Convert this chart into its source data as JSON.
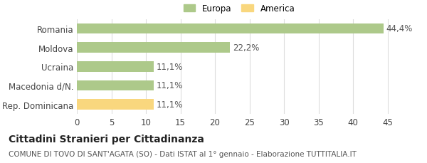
{
  "categories": [
    "Romania",
    "Moldova",
    "Ucraina",
    "Macedonia d/N.",
    "Rep. Dominicana"
  ],
  "values": [
    44.4,
    22.2,
    11.1,
    11.1,
    11.1
  ],
  "labels": [
    "44,4%",
    "22,2%",
    "11,1%",
    "11,1%",
    "11,1%"
  ],
  "bar_colors": [
    "#adc98a",
    "#adc98a",
    "#adc98a",
    "#adc98a",
    "#f9d77e"
  ],
  "legend_items": [
    {
      "label": "Europa",
      "color": "#adc98a"
    },
    {
      "label": "America",
      "color": "#f9d77e"
    }
  ],
  "xlim": [
    0,
    47
  ],
  "xticks": [
    0,
    5,
    10,
    15,
    20,
    25,
    30,
    35,
    40,
    45
  ],
  "title_bold": "Cittadini Stranieri per Cittadinanza",
  "subtitle": "COMUNE DI TOVO DI SANT'AGATA (SO) - Dati ISTAT al 1° gennaio - Elaborazione TUTTITALIA.IT",
  "background_color": "#ffffff",
  "grid_color": "#dddddd",
  "bar_height": 0.55,
  "label_fontsize": 8.5,
  "tick_fontsize": 8.5,
  "title_fontsize": 10,
  "subtitle_fontsize": 7.5
}
